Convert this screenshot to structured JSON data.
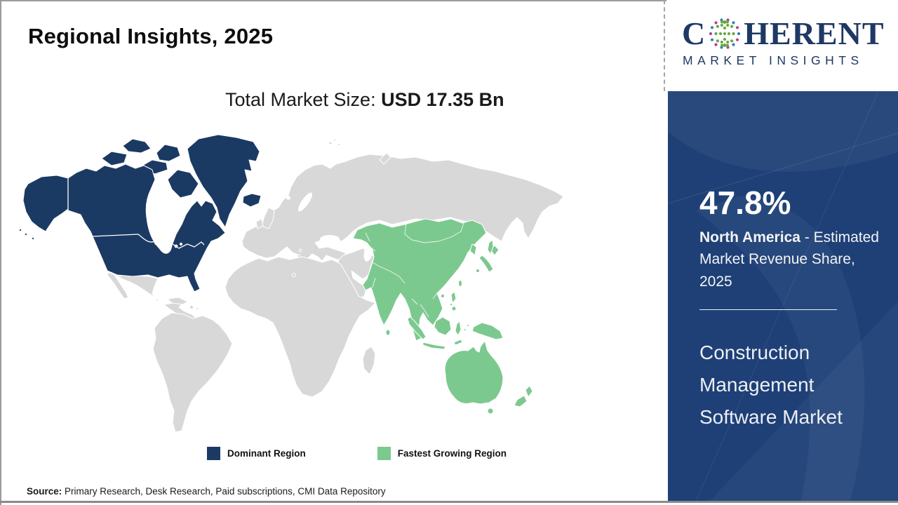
{
  "header": {
    "title": "Regional Insights, 2025"
  },
  "subtitle": {
    "prefix": "Total Market Size: ",
    "value": "USD 17.35 Bn"
  },
  "logo": {
    "brand_c": "C",
    "brand_rest": "HERENT",
    "tagline": "MARKET INSIGHTS",
    "colors": {
      "navy": "#1F3864",
      "dot_green": "#63A83F",
      "dot_pink": "#C03B8D",
      "dot_teal": "#2F86A6"
    }
  },
  "map": {
    "colors": {
      "dominant": "#1B3A63",
      "fastest_growing": "#7CC98F",
      "other_land": "#D8D8D8",
      "ocean": "#FFFFFF"
    },
    "legend": [
      {
        "label": "Dominant Region",
        "color": "#1B3A63"
      },
      {
        "label": "Fastest Growing Region",
        "color": "#7CC98F"
      }
    ],
    "highlight_regions": {
      "dominant": "North America",
      "fastest_growing": "Asia Pacific"
    }
  },
  "sidebar": {
    "background": "#1E4077",
    "stat_value": "47.8%",
    "stat_region": "North America",
    "stat_rest": " - Estimated Market Revenue Share, 2025",
    "market_title": "Construction Management Software Market"
  },
  "footer": {
    "source_label": "Source:",
    "source_text": " Primary Research, Desk Research, Paid subscriptions, CMI Data Repository"
  }
}
